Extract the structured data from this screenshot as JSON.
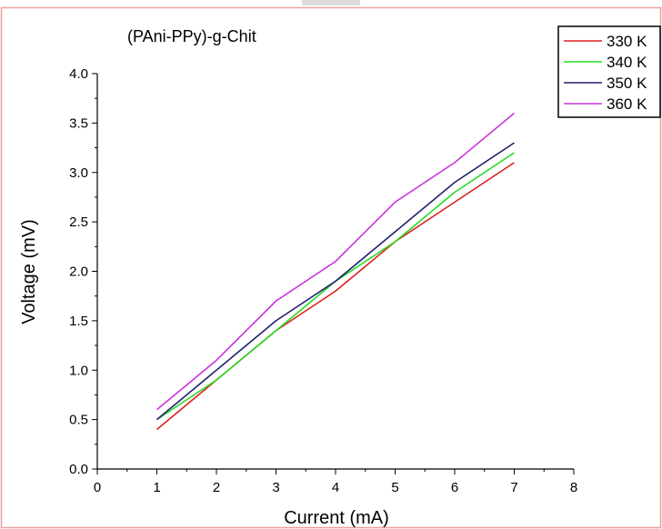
{
  "chart_data": {
    "type": "line",
    "title": "(PAni-PPy)-g-Chit",
    "xlabel": "Current (mA)",
    "ylabel": "Voltage (mV)",
    "xlim": [
      0,
      8
    ],
    "ylim": [
      0.0,
      4.0
    ],
    "x_ticks": [
      "0",
      "1",
      "2",
      "3",
      "4",
      "5",
      "6",
      "7",
      "8"
    ],
    "y_ticks": [
      "0.0",
      "0.5",
      "1.0",
      "1.5",
      "2.0",
      "2.5",
      "3.0",
      "3.5",
      "4.0"
    ],
    "x": [
      1,
      2,
      3,
      4,
      5,
      6,
      7
    ],
    "series": [
      {
        "name": "330 K",
        "color": "#e02020",
        "values": [
          0.4,
          0.9,
          1.4,
          1.8,
          2.3,
          2.7,
          3.1
        ]
      },
      {
        "name": "340 K",
        "color": "#22dd22",
        "values": [
          0.5,
          0.9,
          1.4,
          1.9,
          2.3,
          2.8,
          3.2
        ]
      },
      {
        "name": "350 K",
        "color": "#20206e",
        "values": [
          0.5,
          1.0,
          1.5,
          1.9,
          2.4,
          2.9,
          3.3
        ]
      },
      {
        "name": "360 K",
        "color": "#cc33dd",
        "values": [
          0.6,
          1.1,
          1.7,
          2.1,
          2.7,
          3.1,
          3.6
        ]
      }
    ],
    "legend_position": "top-right",
    "grid": false,
    "frame_color": "#e8a0a0"
  }
}
